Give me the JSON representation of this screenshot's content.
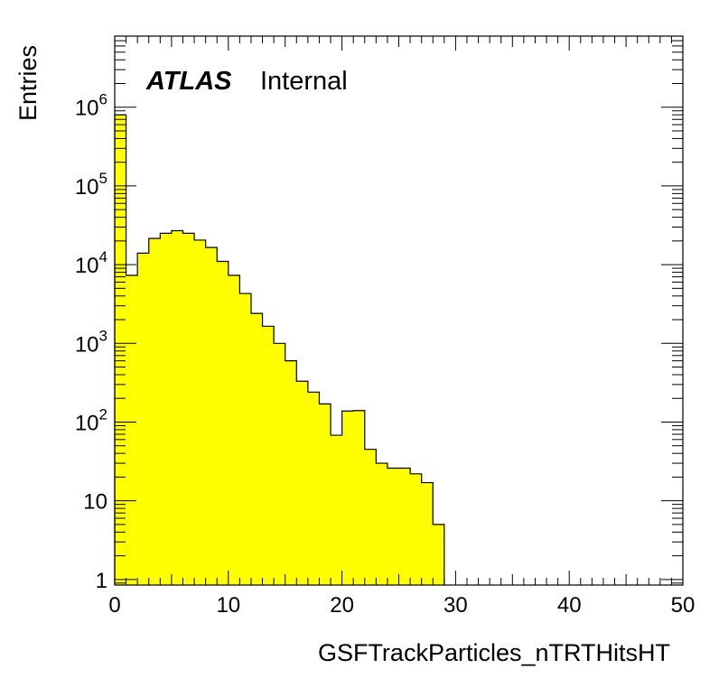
{
  "chart_data": {
    "type": "bar",
    "histogram": true,
    "xlabel": "GSFTrackParticles_nTRTHitsHT",
    "ylabel": "Entries",
    "xlim": [
      0,
      50
    ],
    "ylim": [
      0.85,
      8000000
    ],
    "log_y": true,
    "bin_width": 1,
    "fill_color": "#ffff00",
    "line_color": "#000000",
    "x_tick_labels": [
      "0",
      "10",
      "20",
      "30",
      "40",
      "50"
    ],
    "y_tick_labels": [
      {
        "value": 1,
        "base": "1",
        "exp": ""
      },
      {
        "value": 10,
        "base": "10",
        "exp": ""
      },
      {
        "value": 100,
        "base": "10",
        "exp": "2"
      },
      {
        "value": 1000,
        "base": "10",
        "exp": "3"
      },
      {
        "value": 10000,
        "base": "10",
        "exp": "4"
      },
      {
        "value": 100000,
        "base": "10",
        "exp": "5"
      },
      {
        "value": 1000000,
        "base": "10",
        "exp": "6"
      }
    ],
    "bins": [
      {
        "x": 0,
        "value": 800000
      },
      {
        "x": 1,
        "value": 7300
      },
      {
        "x": 2,
        "value": 14000
      },
      {
        "x": 3,
        "value": 21500
      },
      {
        "x": 4,
        "value": 25000
      },
      {
        "x": 5,
        "value": 27000
      },
      {
        "x": 6,
        "value": 25000
      },
      {
        "x": 7,
        "value": 20500
      },
      {
        "x": 8,
        "value": 16500
      },
      {
        "x": 9,
        "value": 11000
      },
      {
        "x": 10,
        "value": 7300
      },
      {
        "x": 11,
        "value": 4300
      },
      {
        "x": 12,
        "value": 2400
      },
      {
        "x": 13,
        "value": 1650
      },
      {
        "x": 14,
        "value": 1000
      },
      {
        "x": 15,
        "value": 600
      },
      {
        "x": 16,
        "value": 330
      },
      {
        "x": 17,
        "value": 240
      },
      {
        "x": 18,
        "value": 170
      },
      {
        "x": 19,
        "value": 68
      },
      {
        "x": 20,
        "value": 138
      },
      {
        "x": 21,
        "value": 140
      },
      {
        "x": 22,
        "value": 45
      },
      {
        "x": 23,
        "value": 30
      },
      {
        "x": 24,
        "value": 26
      },
      {
        "x": 25,
        "value": 26
      },
      {
        "x": 26,
        "value": 22
      },
      {
        "x": 27,
        "value": 17
      },
      {
        "x": 28,
        "value": 5
      }
    ]
  },
  "annotation": {
    "atlas": "ATLAS",
    "internal": "Internal"
  }
}
